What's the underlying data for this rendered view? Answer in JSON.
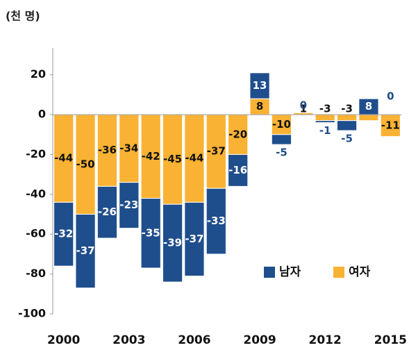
{
  "chart_data": {
    "type": "stacked_bar",
    "unit_label": "(천 명)",
    "categories": [
      "2000",
      null,
      null,
      "2003",
      null,
      null,
      "2006",
      null,
      null,
      "2009",
      null,
      null,
      "2012",
      null,
      null,
      "2015"
    ],
    "series": [
      {
        "name": "여자",
        "color": "#f9b233",
        "values": [
          -44,
          -50,
          -36,
          -34,
          -42,
          -45,
          -44,
          -37,
          -20,
          8,
          -10,
          1,
          -3,
          -3,
          -3,
          -11
        ]
      },
      {
        "name": "남자",
        "color": "#1f4e8c",
        "values": [
          -32,
          -37,
          -26,
          -23,
          -35,
          -39,
          -37,
          -33,
          -16,
          13,
          -5,
          0,
          -1,
          -5,
          8,
          0
        ]
      }
    ],
    "ylim": [
      -100,
      30
    ],
    "yticks": [
      -100,
      -80,
      -60,
      -40,
      -20,
      0,
      20
    ],
    "legend": "lower right"
  }
}
